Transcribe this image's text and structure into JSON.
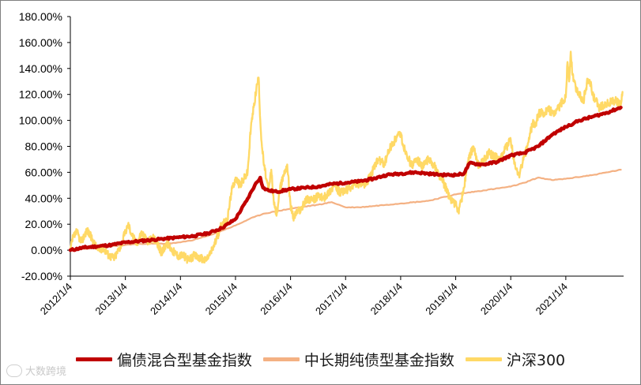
{
  "chart_data": {
    "type": "line",
    "title": "",
    "xlabel": "",
    "ylabel": "",
    "ylim": [
      -20,
      180
    ],
    "y_ticks": [
      -20,
      0,
      20,
      40,
      60,
      80,
      100,
      120,
      140,
      160,
      180
    ],
    "y_tick_labels": [
      "-20.00%",
      "0.00%",
      "20.00%",
      "40.00%",
      "60.00%",
      "80.00%",
      "100.00%",
      "120.00%",
      "140.00%",
      "160.00%",
      "180.00%"
    ],
    "x_unit": "year",
    "xlim": [
      2012.0,
      2022.05
    ],
    "x_ticks": [
      2012,
      2013,
      2014,
      2015,
      2016,
      2017,
      2018,
      2019,
      2020,
      2021
    ],
    "x_tick_labels": [
      "2012/1/4",
      "2013/1/4",
      "2014/1/4",
      "2015/1/4",
      "2016/1/4",
      "2017/1/4",
      "2018/1/4",
      "2019/1/4",
      "2020/1/4",
      "2021/1/4"
    ],
    "grid": false,
    "legend_position": "bottom",
    "series": [
      {
        "name": "偏债混合型基金指数",
        "color": "#c00000",
        "x": [
          2012.0,
          2012.25,
          2012.5,
          2012.75,
          2013.0,
          2013.25,
          2013.5,
          2013.75,
          2014.0,
          2014.25,
          2014.5,
          2014.75,
          2015.0,
          2015.2,
          2015.35,
          2015.45,
          2015.5,
          2015.6,
          2015.75,
          2016.0,
          2016.25,
          2016.5,
          2016.75,
          2017.0,
          2017.25,
          2017.5,
          2017.75,
          2018.0,
          2018.25,
          2018.5,
          2018.75,
          2019.0,
          2019.15,
          2019.25,
          2019.5,
          2019.75,
          2020.0,
          2020.25,
          2020.5,
          2020.75,
          2021.0,
          2021.15,
          2021.25,
          2021.5,
          2021.75,
          2022.0
        ],
        "y": [
          0,
          2,
          3,
          4,
          6,
          7,
          8,
          9,
          10,
          11,
          13,
          17,
          24,
          38,
          50,
          56,
          48,
          46,
          45,
          47,
          48,
          49,
          51,
          52,
          53,
          55,
          58,
          59,
          60,
          59,
          58,
          58,
          59,
          67,
          66,
          68,
          73,
          75,
          80,
          89,
          95,
          98,
          100,
          103,
          106,
          110
        ]
      },
      {
        "name": "中长期纯债型基金指数",
        "color": "#f4b183",
        "x": [
          2012.0,
          2012.5,
          2013.0,
          2013.25,
          2013.5,
          2013.75,
          2014.0,
          2014.25,
          2014.5,
          2014.75,
          2015.0,
          2015.25,
          2015.5,
          2015.75,
          2016.0,
          2016.5,
          2016.75,
          2017.0,
          2017.25,
          2017.5,
          2017.75,
          2018.0,
          2018.5,
          2019.0,
          2019.5,
          2020.0,
          2020.25,
          2020.5,
          2020.75,
          2021.0,
          2021.5,
          2022.0
        ],
        "y": [
          0,
          2,
          4,
          5,
          5,
          5,
          6,
          8,
          11,
          15,
          19,
          24,
          28,
          30,
          32,
          35,
          37,
          33,
          33,
          34,
          35,
          36,
          38,
          43,
          46,
          49,
          52,
          56,
          54,
          55,
          58,
          62
        ]
      },
      {
        "name": "沪深300",
        "color": "#ffd966",
        "x": [
          2012.0,
          2012.05,
          2012.12,
          2012.2,
          2012.3,
          2012.4,
          2012.5,
          2012.6,
          2012.7,
          2012.8,
          2012.92,
          2013.0,
          2013.05,
          2013.12,
          2013.2,
          2013.3,
          2013.4,
          2013.5,
          2013.58,
          2013.66,
          2013.75,
          2013.85,
          2013.95,
          2014.05,
          2014.15,
          2014.25,
          2014.35,
          2014.45,
          2014.55,
          2014.65,
          2014.75,
          2014.85,
          2014.92,
          2015.0,
          2015.08,
          2015.15,
          2015.22,
          2015.28,
          2015.33,
          2015.38,
          2015.42,
          2015.45,
          2015.48,
          2015.52,
          2015.56,
          2015.6,
          2015.65,
          2015.7,
          2015.75,
          2015.8,
          2015.87,
          2015.94,
          2016.0,
          2016.05,
          2016.12,
          2016.2,
          2016.3,
          2016.4,
          2016.5,
          2016.6,
          2016.7,
          2016.8,
          2016.9,
          2017.0,
          2017.1,
          2017.2,
          2017.3,
          2017.4,
          2017.5,
          2017.6,
          2017.7,
          2017.8,
          2017.9,
          2018.0,
          2018.05,
          2018.1,
          2018.15,
          2018.2,
          2018.3,
          2018.4,
          2018.5,
          2018.6,
          2018.7,
          2018.8,
          2018.9,
          2019.0,
          2019.05,
          2019.1,
          2019.15,
          2019.2,
          2019.25,
          2019.32,
          2019.4,
          2019.5,
          2019.6,
          2019.7,
          2019.8,
          2019.9,
          2020.0,
          2020.05,
          2020.1,
          2020.15,
          2020.2,
          2020.3,
          2020.4,
          2020.45,
          2020.5,
          2020.6,
          2020.7,
          2020.8,
          2020.9,
          2021.0,
          2021.03,
          2021.06,
          2021.09,
          2021.12,
          2021.18,
          2021.25,
          2021.32,
          2021.4,
          2021.45,
          2021.5,
          2021.55,
          2021.6,
          2021.7,
          2021.8,
          2021.9,
          2022.0,
          2022.03
        ],
        "y": [
          0,
          10,
          14,
          6,
          16,
          8,
          0,
          2,
          -4,
          -6,
          4,
          14,
          20,
          12,
          5,
          14,
          6,
          10,
          4,
          -2,
          6,
          0,
          -4,
          -4,
          -8,
          -4,
          -6,
          -8,
          -2,
          8,
          20,
          22,
          44,
          56,
          50,
          55,
          60,
          95,
          110,
          125,
          133,
          100,
          80,
          65,
          55,
          45,
          62,
          35,
          28,
          45,
          58,
          66,
          35,
          25,
          30,
          32,
          40,
          38,
          42,
          40,
          45,
          50,
          44,
          46,
          48,
          52,
          50,
          53,
          62,
          70,
          66,
          78,
          85,
          90,
          80,
          76,
          70,
          65,
          70,
          64,
          70,
          66,
          58,
          50,
          40,
          35,
          30,
          38,
          48,
          62,
          72,
          80,
          66,
          68,
          75,
          72,
          70,
          78,
          85,
          70,
          62,
          58,
          65,
          80,
          98,
          96,
          105,
          106,
          108,
          104,
          112,
          118,
          145,
          130,
          153,
          135,
          125,
          120,
          115,
          132,
          128,
          118,
          115,
          110,
          112,
          114,
          115,
          112,
          122
        ]
      }
    ]
  },
  "legend": {
    "items": [
      "偏债混合型基金指数",
      "中长期纯债型基金指数",
      "沪深300"
    ]
  },
  "watermark": {
    "text": "大数跨境"
  }
}
